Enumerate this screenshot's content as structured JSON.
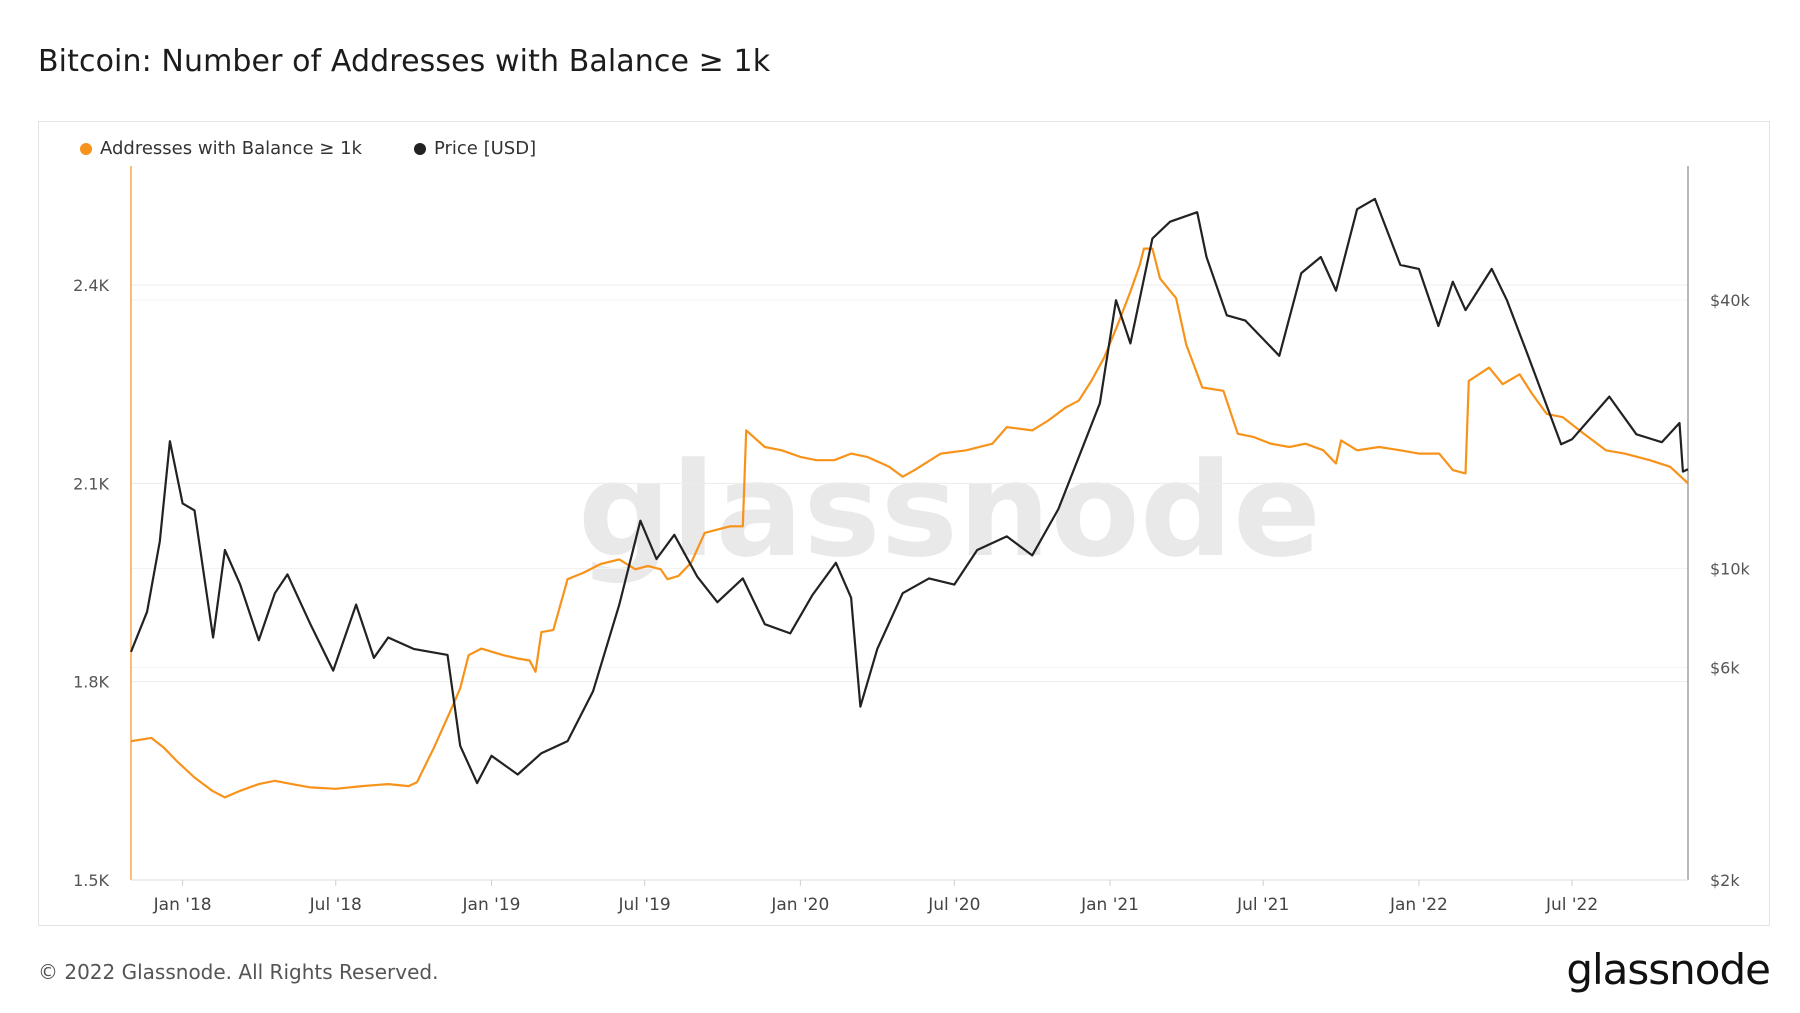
{
  "title": "Bitcoin: Number of Addresses with Balance ≥ 1k",
  "watermark": "glassnode",
  "footer": "© 2022 Glassnode. All Rights Reserved.",
  "brand": "glassnode",
  "colors": {
    "series_addresses": "#f7931a",
    "series_price": "#222222",
    "grid": "#ececec",
    "axis_text": "#555555"
  },
  "chart_data": {
    "type": "line",
    "title": "Bitcoin: Number of Addresses with Balance ≥ 1k",
    "legend_position": "top-left",
    "grid": true,
    "x_range": [
      "2017-11-01",
      "2022-11-15"
    ],
    "x_ticks": [
      {
        "date": "2018-01-01",
        "label": "Jan '18"
      },
      {
        "date": "2018-07-01",
        "label": "Jul '18"
      },
      {
        "date": "2019-01-01",
        "label": "Jan '19"
      },
      {
        "date": "2019-07-01",
        "label": "Jul '19"
      },
      {
        "date": "2020-01-01",
        "label": "Jan '20"
      },
      {
        "date": "2020-07-01",
        "label": "Jul '20"
      },
      {
        "date": "2021-01-01",
        "label": "Jan '21"
      },
      {
        "date": "2021-07-01",
        "label": "Jul '21"
      },
      {
        "date": "2022-01-01",
        "label": "Jan '22"
      },
      {
        "date": "2022-07-01",
        "label": "Jul '22"
      }
    ],
    "y_left": {
      "min": 1500,
      "max": 2580,
      "ticks": [
        {
          "value": 1500,
          "label": "1.5K"
        },
        {
          "value": 1800,
          "label": "1.8K"
        },
        {
          "value": 2100,
          "label": "2.1K"
        },
        {
          "value": 2400,
          "label": "2.4K"
        }
      ]
    },
    "y_right": {
      "scale": "log",
      "min": 2000,
      "max": 80000,
      "ticks": [
        {
          "value": 2000,
          "label": "$2k"
        },
        {
          "value": 6000,
          "label": "$6k"
        },
        {
          "value": 10000,
          "label": "$10k"
        },
        {
          "value": 40000,
          "label": "$40k"
        }
      ]
    },
    "series": [
      {
        "name": "Addresses with Balance ≥ 1k",
        "axis": "left",
        "points": [
          [
            "2017-11-01",
            1710
          ],
          [
            "2017-11-25",
            1715
          ],
          [
            "2017-12-10",
            1700
          ],
          [
            "2017-12-25",
            1680
          ],
          [
            "2018-01-15",
            1655
          ],
          [
            "2018-02-05",
            1635
          ],
          [
            "2018-02-20",
            1625
          ],
          [
            "2018-03-10",
            1635
          ],
          [
            "2018-04-01",
            1645
          ],
          [
            "2018-04-20",
            1650
          ],
          [
            "2018-05-10",
            1645
          ],
          [
            "2018-06-01",
            1640
          ],
          [
            "2018-07-01",
            1638
          ],
          [
            "2018-08-01",
            1642
          ],
          [
            "2018-09-01",
            1645
          ],
          [
            "2018-09-25",
            1642
          ],
          [
            "2018-10-05",
            1648
          ],
          [
            "2018-10-25",
            1700
          ],
          [
            "2018-11-15",
            1760
          ],
          [
            "2018-11-25",
            1790
          ],
          [
            "2018-12-05",
            1840
          ],
          [
            "2018-12-20",
            1850
          ],
          [
            "2019-01-15",
            1840
          ],
          [
            "2019-02-01",
            1835
          ],
          [
            "2019-02-15",
            1832
          ],
          [
            "2019-02-22",
            1815
          ],
          [
            "2019-03-01",
            1875
          ],
          [
            "2019-03-15",
            1878
          ],
          [
            "2019-04-01",
            1955
          ],
          [
            "2019-04-20",
            1965
          ],
          [
            "2019-05-10",
            1978
          ],
          [
            "2019-06-01",
            1985
          ],
          [
            "2019-06-20",
            1970
          ],
          [
            "2019-07-05",
            1975
          ],
          [
            "2019-07-20",
            1970
          ],
          [
            "2019-07-28",
            1955
          ],
          [
            "2019-08-10",
            1960
          ],
          [
            "2019-08-25",
            1980
          ],
          [
            "2019-09-10",
            2025
          ],
          [
            "2019-09-25",
            2030
          ],
          [
            "2019-10-10",
            2035
          ],
          [
            "2019-10-25",
            2035
          ],
          [
            "2019-10-29",
            2180
          ],
          [
            "2019-11-20",
            2155
          ],
          [
            "2019-12-10",
            2150
          ],
          [
            "2020-01-01",
            2140
          ],
          [
            "2020-01-20",
            2135
          ],
          [
            "2020-02-10",
            2135
          ],
          [
            "2020-03-01",
            2145
          ],
          [
            "2020-03-20",
            2140
          ],
          [
            "2020-04-15",
            2125
          ],
          [
            "2020-05-01",
            2110
          ],
          [
            "2020-05-15",
            2120
          ],
          [
            "2020-06-15",
            2145
          ],
          [
            "2020-07-15",
            2150
          ],
          [
            "2020-08-15",
            2160
          ],
          [
            "2020-09-01",
            2185
          ],
          [
            "2020-10-01",
            2180
          ],
          [
            "2020-10-20",
            2195
          ],
          [
            "2020-11-10",
            2215
          ],
          [
            "2020-11-25",
            2225
          ],
          [
            "2020-12-10",
            2255
          ],
          [
            "2020-12-25",
            2290
          ],
          [
            "2021-01-10",
            2340
          ],
          [
            "2021-01-25",
            2390
          ],
          [
            "2021-02-05",
            2430
          ],
          [
            "2021-02-10",
            2455
          ],
          [
            "2021-02-20",
            2455
          ],
          [
            "2021-03-01",
            2410
          ],
          [
            "2021-03-20",
            2380
          ],
          [
            "2021-04-01",
            2310
          ],
          [
            "2021-04-20",
            2245
          ],
          [
            "2021-05-15",
            2240
          ],
          [
            "2021-06-01",
            2175
          ],
          [
            "2021-06-20",
            2170
          ],
          [
            "2021-07-10",
            2160
          ],
          [
            "2021-08-01",
            2155
          ],
          [
            "2021-08-20",
            2160
          ],
          [
            "2021-09-10",
            2150
          ],
          [
            "2021-09-25",
            2130
          ],
          [
            "2021-10-01",
            2165
          ],
          [
            "2021-10-20",
            2150
          ],
          [
            "2021-11-15",
            2155
          ],
          [
            "2021-12-10",
            2150
          ],
          [
            "2022-01-01",
            2145
          ],
          [
            "2022-01-25",
            2145
          ],
          [
            "2022-02-10",
            2120
          ],
          [
            "2022-02-25",
            2115
          ],
          [
            "2022-03-01",
            2255
          ],
          [
            "2022-03-25",
            2275
          ],
          [
            "2022-04-10",
            2250
          ],
          [
            "2022-04-30",
            2265
          ],
          [
            "2022-05-15",
            2235
          ],
          [
            "2022-06-01",
            2205
          ],
          [
            "2022-06-20",
            2200
          ],
          [
            "2022-07-15",
            2175
          ],
          [
            "2022-08-10",
            2150
          ],
          [
            "2022-09-01",
            2145
          ],
          [
            "2022-10-01",
            2135
          ],
          [
            "2022-10-25",
            2125
          ],
          [
            "2022-11-15",
            2100
          ]
        ]
      },
      {
        "name": "Price [USD]",
        "axis": "right",
        "points": [
          [
            "2017-11-01",
            6500
          ],
          [
            "2017-11-20",
            8000
          ],
          [
            "2017-12-05",
            11500
          ],
          [
            "2017-12-17",
            19300
          ],
          [
            "2018-01-01",
            14000
          ],
          [
            "2018-01-15",
            13500
          ],
          [
            "2018-02-06",
            7000
          ],
          [
            "2018-02-20",
            11000
          ],
          [
            "2018-03-10",
            9200
          ],
          [
            "2018-04-01",
            6900
          ],
          [
            "2018-04-20",
            8800
          ],
          [
            "2018-05-05",
            9700
          ],
          [
            "2018-06-01",
            7500
          ],
          [
            "2018-06-28",
            5900
          ],
          [
            "2018-07-25",
            8300
          ],
          [
            "2018-08-15",
            6300
          ],
          [
            "2018-09-01",
            7000
          ],
          [
            "2018-10-01",
            6600
          ],
          [
            "2018-11-10",
            6400
          ],
          [
            "2018-11-25",
            4000
          ],
          [
            "2018-12-15",
            3300
          ],
          [
            "2019-01-01",
            3800
          ],
          [
            "2019-02-01",
            3450
          ],
          [
            "2019-03-01",
            3850
          ],
          [
            "2019-04-01",
            4100
          ],
          [
            "2019-05-01",
            5300
          ],
          [
            "2019-06-01",
            8300
          ],
          [
            "2019-06-26",
            12800
          ],
          [
            "2019-07-15",
            10500
          ],
          [
            "2019-08-05",
            11900
          ],
          [
            "2019-09-01",
            9600
          ],
          [
            "2019-09-25",
            8400
          ],
          [
            "2019-10-25",
            9500
          ],
          [
            "2019-11-20",
            7500
          ],
          [
            "2019-12-20",
            7150
          ],
          [
            "2020-01-15",
            8700
          ],
          [
            "2020-02-12",
            10300
          ],
          [
            "2020-03-01",
            8600
          ],
          [
            "2020-03-12",
            4900
          ],
          [
            "2020-04-01",
            6600
          ],
          [
            "2020-05-01",
            8800
          ],
          [
            "2020-06-01",
            9500
          ],
          [
            "2020-07-01",
            9200
          ],
          [
            "2020-07-28",
            11000
          ],
          [
            "2020-09-01",
            11800
          ],
          [
            "2020-10-01",
            10700
          ],
          [
            "2020-11-01",
            13600
          ],
          [
            "2020-12-01",
            19000
          ],
          [
            "2020-12-20",
            23500
          ],
          [
            "2021-01-08",
            40000
          ],
          [
            "2021-01-25",
            32000
          ],
          [
            "2021-02-20",
            55000
          ],
          [
            "2021-03-13",
            60000
          ],
          [
            "2021-04-14",
            63000
          ],
          [
            "2021-04-25",
            50000
          ],
          [
            "2021-05-19",
            37000
          ],
          [
            "2021-06-10",
            36000
          ],
          [
            "2021-07-20",
            30000
          ],
          [
            "2021-08-15",
            46000
          ],
          [
            "2021-09-07",
            50000
          ],
          [
            "2021-09-25",
            42000
          ],
          [
            "2021-10-20",
            64000
          ],
          [
            "2021-11-10",
            67500
          ],
          [
            "2021-12-10",
            48000
          ],
          [
            "2022-01-01",
            47000
          ],
          [
            "2022-01-24",
            35000
          ],
          [
            "2022-02-10",
            44000
          ],
          [
            "2022-02-25",
            38000
          ],
          [
            "2022-03-28",
            47000
          ],
          [
            "2022-04-15",
            40000
          ],
          [
            "2022-05-10",
            30000
          ],
          [
            "2022-06-18",
            19000
          ],
          [
            "2022-07-01",
            19500
          ],
          [
            "2022-08-14",
            24300
          ],
          [
            "2022-09-15",
            20000
          ],
          [
            "2022-10-15",
            19200
          ],
          [
            "2022-11-05",
            21200
          ],
          [
            "2022-11-09",
            16500
          ],
          [
            "2022-11-15",
            16700
          ]
        ]
      }
    ]
  }
}
